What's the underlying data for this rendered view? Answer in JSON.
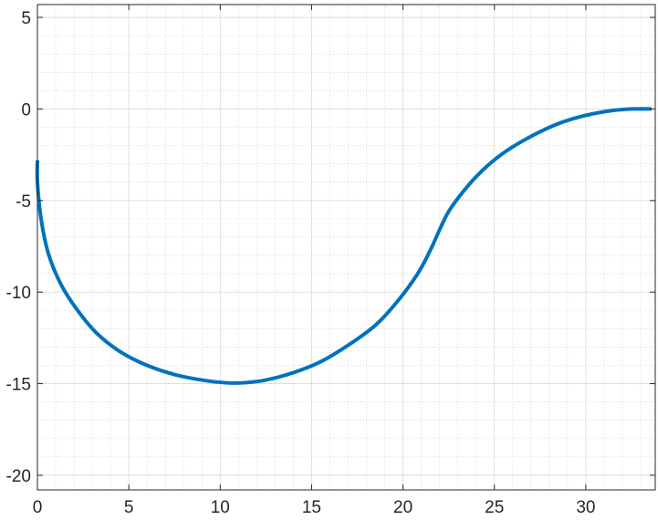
{
  "chart_data": {
    "type": "line",
    "title": "",
    "xlabel": "",
    "ylabel": "",
    "xlim": [
      0,
      33.8
    ],
    "ylim": [
      -20.8,
      5.7
    ],
    "grid": true,
    "minor_grid": true,
    "x_ticks": [
      0,
      5,
      10,
      15,
      20,
      25,
      30
    ],
    "y_ticks": [
      5,
      0,
      -5,
      -10,
      -15,
      -20
    ],
    "x_tick_labels": [
      "0",
      "5",
      "10",
      "15",
      "20",
      "25",
      "30"
    ],
    "y_tick_labels": [
      "5",
      "0",
      "-5",
      "-10",
      "-15",
      "-20"
    ],
    "line_color": "#0072BD",
    "series": [
      {
        "x": [
          0.0,
          0.0,
          0.2,
          0.6,
          1.3,
          2.2,
          3.3,
          4.6,
          6.0,
          7.5,
          9.0,
          10.3,
          11.3,
          12.5,
          14.0,
          15.5,
          17.0,
          18.5,
          19.7,
          20.8,
          21.5,
          22.0,
          22.5,
          23.3,
          24.3,
          25.5,
          27.0,
          28.5,
          30.0,
          31.5,
          32.5,
          33.6
        ],
        "y": [
          -2.8,
          -4.0,
          -6.0,
          -7.9,
          -9.6,
          -11.0,
          -12.3,
          -13.3,
          -14.0,
          -14.5,
          -14.8,
          -14.95,
          -14.95,
          -14.8,
          -14.4,
          -13.8,
          -12.9,
          -11.8,
          -10.5,
          -9.0,
          -7.7,
          -6.6,
          -5.6,
          -4.5,
          -3.4,
          -2.4,
          -1.5,
          -0.8,
          -0.35,
          -0.08,
          0.0,
          0.0
        ]
      }
    ]
  }
}
